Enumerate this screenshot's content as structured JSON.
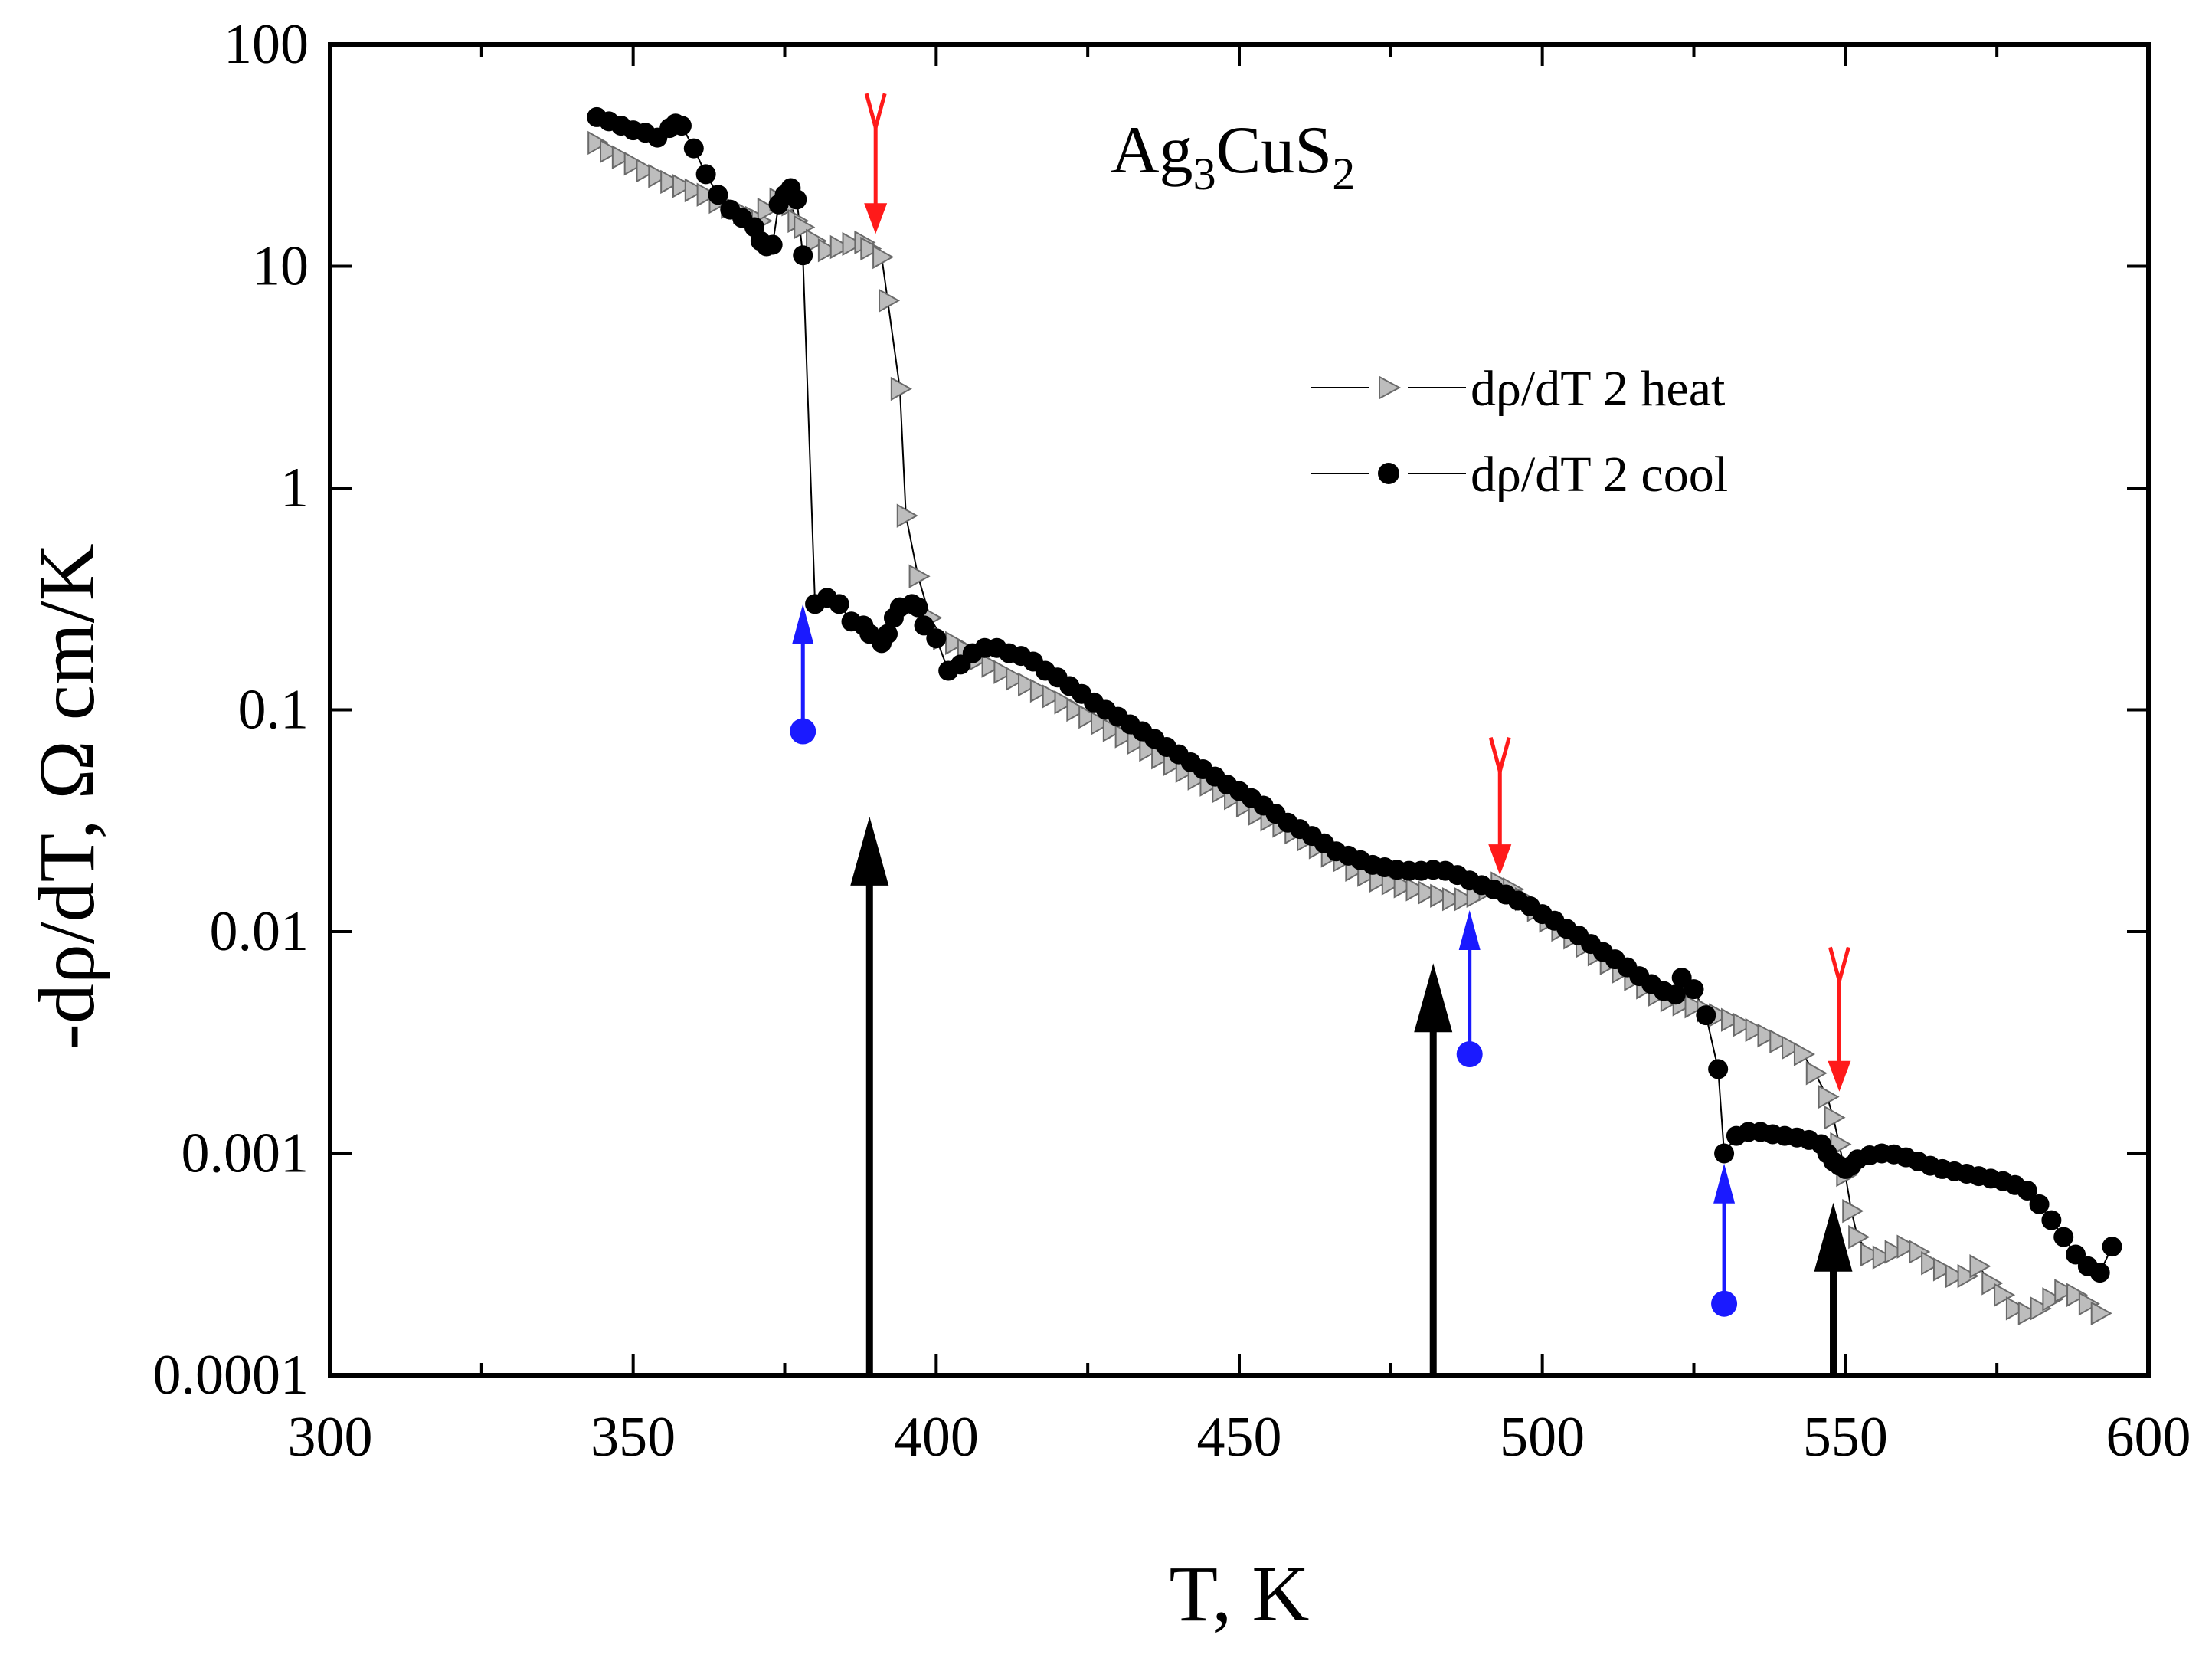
{
  "chart_data": {
    "type": "scatter",
    "title": "",
    "xlabel": "T, K",
    "ylabel": "-dρ/dT, Ω cm/K",
    "xlim": [
      300,
      600
    ],
    "ylim": [
      0.0001,
      100
    ],
    "yscale": "log",
    "xticks": [
      300,
      350,
      400,
      450,
      500,
      550,
      600
    ],
    "xtick_labels": [
      "300",
      "350",
      "400",
      "450",
      "500",
      "550",
      "600"
    ],
    "yticks": [
      0.0001,
      0.001,
      0.01,
      0.1,
      1,
      10,
      100
    ],
    "ytick_labels": [
      "0.0001",
      "0.001",
      "0.01",
      "0.1",
      "1",
      "10",
      "100"
    ],
    "annotation": {
      "base": "Ag",
      "sub1": "3",
      "mid": "CuS",
      "sub2": "2"
    },
    "legend": {
      "position": "right-center",
      "entries": [
        {
          "label": "dρ/dT 2 heat",
          "series": "heat"
        },
        {
          "label": "dρ/dT 2 cool",
          "series": "cool"
        }
      ]
    },
    "series": [
      {
        "name": "dρ/dT 2 heat",
        "marker": "triangle-right",
        "color": "#bdbdbd",
        "edge": "#6a6a6a",
        "points": [
          [
            344,
            36.0
          ],
          [
            346,
            33.0
          ],
          [
            348,
            31.0
          ],
          [
            350,
            29.0
          ],
          [
            352,
            27.0
          ],
          [
            354,
            25.5
          ],
          [
            356,
            24.0
          ],
          [
            358,
            23.0
          ],
          [
            360,
            22.0
          ],
          [
            362,
            21.0
          ],
          [
            364,
            19.5
          ],
          [
            366,
            18.5
          ],
          [
            368,
            17.5
          ],
          [
            370,
            16.5
          ],
          [
            371,
            16.0
          ],
          [
            372,
            18.0
          ],
          [
            374,
            20.0
          ],
          [
            376,
            19.0
          ],
          [
            377,
            16.0
          ],
          [
            378,
            15.0
          ],
          [
            380,
            13.0
          ],
          [
            382,
            11.8
          ],
          [
            384,
            12.2
          ],
          [
            386,
            12.6
          ],
          [
            388,
            12.8
          ],
          [
            389,
            12.0
          ],
          [
            391,
            11.0
          ],
          [
            392,
            7.0
          ],
          [
            394,
            2.8
          ],
          [
            395,
            0.75
          ],
          [
            397,
            0.4
          ],
          [
            399,
            0.26
          ],
          [
            401,
            0.21
          ],
          [
            403,
            0.2
          ],
          [
            405,
            0.185
          ],
          [
            407,
            0.17
          ],
          [
            409,
            0.158
          ],
          [
            411,
            0.148
          ],
          [
            413,
            0.138
          ],
          [
            415,
            0.13
          ],
          [
            417,
            0.122
          ],
          [
            419,
            0.115
          ],
          [
            421,
            0.108
          ],
          [
            423,
            0.1
          ],
          [
            425,
            0.093
          ],
          [
            427,
            0.087
          ],
          [
            429,
            0.081
          ],
          [
            431,
            0.076
          ],
          [
            433,
            0.071
          ],
          [
            435,
            0.066
          ],
          [
            437,
            0.061
          ],
          [
            439,
            0.057
          ],
          [
            441,
            0.053
          ],
          [
            443,
            0.049
          ],
          [
            445,
            0.046
          ],
          [
            447,
            0.043
          ],
          [
            449,
            0.04
          ],
          [
            451,
            0.037
          ],
          [
            453,
            0.034
          ],
          [
            455,
            0.032
          ],
          [
            457,
            0.03
          ],
          [
            459,
            0.028
          ],
          [
            461,
            0.026
          ],
          [
            463,
            0.024
          ],
          [
            465,
            0.022
          ],
          [
            467,
            0.021
          ],
          [
            469,
            0.019
          ],
          [
            471,
            0.018
          ],
          [
            473,
            0.017
          ],
          [
            475,
            0.0165
          ],
          [
            477,
            0.016
          ],
          [
            479,
            0.0155
          ],
          [
            481,
            0.015
          ],
          [
            483,
            0.0145
          ],
          [
            485,
            0.014
          ],
          [
            487,
            0.014
          ],
          [
            489,
            0.0145
          ],
          [
            491,
            0.0155
          ],
          [
            493,
            0.0165
          ],
          [
            495,
            0.0155
          ],
          [
            497,
            0.014
          ],
          [
            499,
            0.0125
          ],
          [
            501,
            0.0112
          ],
          [
            503,
            0.0102
          ],
          [
            505,
            0.0094
          ],
          [
            507,
            0.0086
          ],
          [
            509,
            0.0079
          ],
          [
            511,
            0.0072
          ],
          [
            513,
            0.0066
          ],
          [
            515,
            0.0061
          ],
          [
            517,
            0.0056
          ],
          [
            519,
            0.0052
          ],
          [
            521,
            0.0049
          ],
          [
            523,
            0.0047
          ],
          [
            525,
            0.0046
          ],
          [
            527,
            0.0044
          ],
          [
            529,
            0.0042
          ],
          [
            531,
            0.004
          ],
          [
            533,
            0.0038
          ],
          [
            535,
            0.0036
          ],
          [
            537,
            0.0034
          ],
          [
            539,
            0.0032
          ],
          [
            541,
            0.003
          ],
          [
            543,
            0.0028
          ],
          [
            545,
            0.0023
          ],
          [
            547,
            0.0018
          ],
          [
            548,
            0.00145
          ],
          [
            549,
            0.0011
          ],
          [
            550,
            0.0008
          ],
          [
            551,
            0.00055
          ],
          [
            552,
            0.00042
          ],
          [
            554,
            0.00035
          ],
          [
            556,
            0.00034
          ],
          [
            558,
            0.00036
          ],
          [
            560,
            0.00038
          ],
          [
            562,
            0.00036
          ],
          [
            564,
            0.00032
          ],
          [
            566,
            0.0003
          ],
          [
            568,
            0.00028
          ],
          [
            570,
            0.00028
          ],
          [
            572,
            0.00031
          ],
          [
            574,
            0.00026
          ],
          [
            576,
            0.00023
          ],
          [
            578,
            0.0002
          ],
          [
            580,
            0.00019
          ],
          [
            582,
            0.0002
          ],
          [
            584,
            0.00022
          ],
          [
            586,
            0.00024
          ],
          [
            588,
            0.00023
          ],
          [
            590,
            0.00021
          ],
          [
            592,
            0.00019
          ]
        ]
      },
      {
        "name": "dρ/dT 2 cool",
        "marker": "circle",
        "color": "#000000",
        "edge": "#000000",
        "points": [
          [
            344,
            47.0
          ],
          [
            346,
            45.0
          ],
          [
            348,
            43.0
          ],
          [
            350,
            41.0
          ],
          [
            352,
            40.0
          ],
          [
            354,
            38.0
          ],
          [
            356,
            42.0
          ],
          [
            357,
            44.0
          ],
          [
            358,
            43.0
          ],
          [
            360,
            34.0
          ],
          [
            362,
            26.0
          ],
          [
            364,
            21.0
          ],
          [
            366,
            18.0
          ],
          [
            368,
            16.5
          ],
          [
            370,
            15.0
          ],
          [
            371,
            13.0
          ],
          [
            372,
            12.3
          ],
          [
            373,
            12.5
          ],
          [
            374,
            19.0
          ],
          [
            375,
            21.0
          ],
          [
            376,
            22.5
          ],
          [
            377,
            20.0
          ],
          [
            378,
            11.2
          ],
          [
            380,
            0.3
          ],
          [
            382,
            0.32
          ],
          [
            384,
            0.3
          ],
          [
            386,
            0.25
          ],
          [
            388,
            0.24
          ],
          [
            389,
            0.22
          ],
          [
            391,
            0.2
          ],
          [
            392,
            0.22
          ],
          [
            393,
            0.26
          ],
          [
            394,
            0.29
          ],
          [
            396,
            0.3
          ],
          [
            397,
            0.29
          ],
          [
            398,
            0.24
          ],
          [
            400,
            0.21
          ],
          [
            402,
            0.15
          ],
          [
            404,
            0.16
          ],
          [
            406,
            0.18
          ],
          [
            408,
            0.19
          ],
          [
            410,
            0.19
          ],
          [
            412,
            0.18
          ],
          [
            414,
            0.175
          ],
          [
            416,
            0.165
          ],
          [
            418,
            0.15
          ],
          [
            420,
            0.14
          ],
          [
            422,
            0.128
          ],
          [
            424,
            0.118
          ],
          [
            426,
            0.108
          ],
          [
            428,
            0.1
          ],
          [
            430,
            0.093
          ],
          [
            432,
            0.086
          ],
          [
            434,
            0.08
          ],
          [
            436,
            0.074
          ],
          [
            438,
            0.068
          ],
          [
            440,
            0.063
          ],
          [
            442,
            0.058
          ],
          [
            444,
            0.054
          ],
          [
            446,
            0.05
          ],
          [
            448,
            0.046
          ],
          [
            450,
            0.043
          ],
          [
            452,
            0.04
          ],
          [
            454,
            0.037
          ],
          [
            456,
            0.034
          ],
          [
            458,
            0.031
          ],
          [
            460,
            0.029
          ],
          [
            462,
            0.027
          ],
          [
            464,
            0.025
          ],
          [
            466,
            0.023
          ],
          [
            468,
            0.022
          ],
          [
            470,
            0.021
          ],
          [
            472,
            0.02
          ],
          [
            474,
            0.0195
          ],
          [
            476,
            0.019
          ],
          [
            478,
            0.0188
          ],
          [
            480,
            0.0188
          ],
          [
            482,
            0.019
          ],
          [
            484,
            0.0188
          ],
          [
            486,
            0.018
          ],
          [
            488,
            0.017
          ],
          [
            490,
            0.0162
          ],
          [
            492,
            0.0155
          ],
          [
            494,
            0.0147
          ],
          [
            496,
            0.0138
          ],
          [
            498,
            0.013
          ],
          [
            500,
            0.012
          ],
          [
            502,
            0.0112
          ],
          [
            504,
            0.0103
          ],
          [
            506,
            0.0096
          ],
          [
            508,
            0.0088
          ],
          [
            510,
            0.0081
          ],
          [
            512,
            0.0075
          ],
          [
            514,
            0.0069
          ],
          [
            516,
            0.0063
          ],
          [
            518,
            0.0058
          ],
          [
            520,
            0.0054
          ],
          [
            522,
            0.0052
          ],
          [
            523,
            0.0062
          ],
          [
            525,
            0.0055
          ],
          [
            527,
            0.0042
          ],
          [
            529,
            0.0024
          ],
          [
            530,
            0.001
          ],
          [
            532,
            0.0012
          ],
          [
            534,
            0.00125
          ],
          [
            536,
            0.00125
          ],
          [
            538,
            0.00122
          ],
          [
            540,
            0.0012
          ],
          [
            542,
            0.00118
          ],
          [
            544,
            0.00115
          ],
          [
            546,
            0.0011
          ],
          [
            547,
            0.001
          ],
          [
            548,
            0.00092
          ],
          [
            549,
            0.00088
          ],
          [
            550,
            0.00085
          ],
          [
            551,
            0.00088
          ],
          [
            552,
            0.00094
          ],
          [
            554,
            0.00098
          ],
          [
            556,
            0.001
          ],
          [
            558,
            0.00099
          ],
          [
            560,
            0.00096
          ],
          [
            562,
            0.00092
          ],
          [
            564,
            0.00088
          ],
          [
            566,
            0.00085
          ],
          [
            568,
            0.00083
          ],
          [
            570,
            0.00081
          ],
          [
            572,
            0.00079
          ],
          [
            574,
            0.00077
          ],
          [
            576,
            0.00075
          ],
          [
            578,
            0.00072
          ],
          [
            580,
            0.00068
          ],
          [
            582,
            0.00059
          ],
          [
            584,
            0.0005
          ],
          [
            586,
            0.00042
          ],
          [
            588,
            0.00035
          ],
          [
            590,
            0.00031
          ],
          [
            592,
            0.00029
          ],
          [
            594,
            0.00038
          ]
        ]
      }
    ],
    "arrows": [
      {
        "color": "red",
        "style": "down",
        "x": 390,
        "from": 60,
        "to": 14
      },
      {
        "color": "red",
        "style": "down",
        "x": 493,
        "from": 0.075,
        "to": 0.018
      },
      {
        "color": "red",
        "style": "down",
        "x": 549,
        "from": 0.0085,
        "to": 0.0019
      },
      {
        "color": "blue",
        "style": "up-dot",
        "x": 378,
        "from": 0.08,
        "to": 0.3
      },
      {
        "color": "blue",
        "style": "up-dot",
        "x": 488,
        "from": 0.0028,
        "to": 0.0125
      },
      {
        "color": "blue",
        "style": "up-dot",
        "x": 530,
        "from": 0.00021,
        "to": 0.0009
      },
      {
        "color": "black",
        "style": "up",
        "x": 389,
        "from": 0.0001,
        "to": 0.033
      },
      {
        "color": "black",
        "style": "up",
        "x": 482,
        "from": 0.0001,
        "to": 0.0072
      },
      {
        "color": "black",
        "style": "up",
        "x": 548,
        "from": 0.0001,
        "to": 0.0006
      }
    ]
  }
}
